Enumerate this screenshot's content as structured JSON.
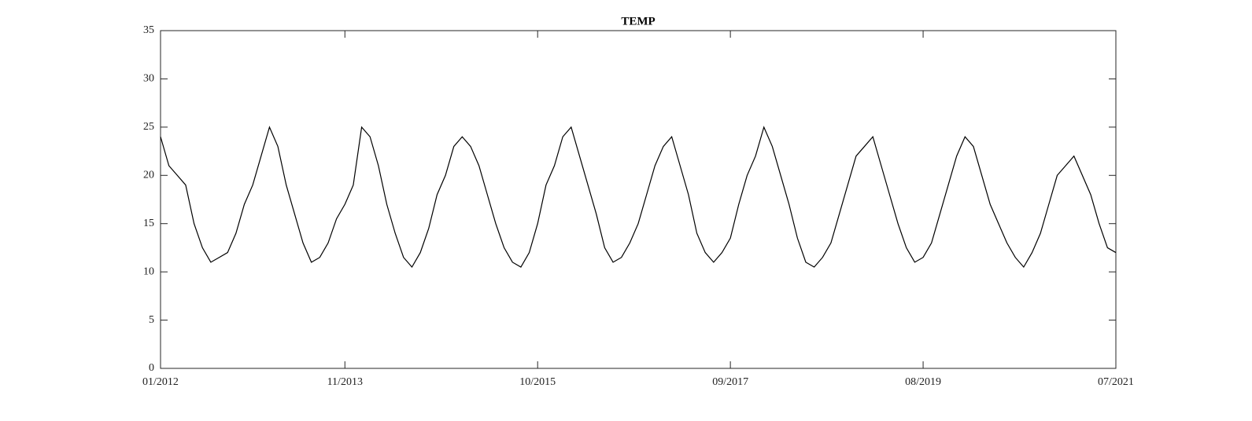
{
  "chart_data": {
    "type": "line",
    "title": "TEMP",
    "x": [
      "01/2012",
      "02/2012",
      "03/2012",
      "04/2012",
      "05/2012",
      "06/2012",
      "07/2012",
      "08/2012",
      "09/2012",
      "10/2012",
      "11/2012",
      "12/2012",
      "01/2013",
      "02/2013",
      "03/2013",
      "04/2013",
      "05/2013",
      "06/2013",
      "07/2013",
      "08/2013",
      "09/2013",
      "10/2013",
      "11/2013",
      "12/2013",
      "01/2014",
      "02/2014",
      "03/2014",
      "04/2014",
      "05/2014",
      "06/2014",
      "07/2014",
      "08/2014",
      "09/2014",
      "10/2014",
      "11/2014",
      "12/2014",
      "01/2015",
      "02/2015",
      "03/2015",
      "04/2015",
      "05/2015",
      "06/2015",
      "07/2015",
      "08/2015",
      "09/2015",
      "10/2015",
      "11/2015",
      "12/2015",
      "01/2016",
      "02/2016",
      "03/2016",
      "04/2016",
      "05/2016",
      "06/2016",
      "07/2016",
      "08/2016",
      "09/2016",
      "10/2016",
      "11/2016",
      "12/2016",
      "01/2017",
      "02/2017",
      "03/2017",
      "04/2017",
      "05/2017",
      "06/2017",
      "07/2017",
      "08/2017",
      "09/2017",
      "10/2017",
      "11/2017",
      "12/2017",
      "01/2018",
      "02/2018",
      "03/2018",
      "04/2018",
      "05/2018",
      "06/2018",
      "07/2018",
      "08/2018",
      "09/2018",
      "10/2018",
      "11/2018",
      "12/2018",
      "01/2019",
      "02/2019",
      "03/2019",
      "04/2019",
      "05/2019",
      "06/2019",
      "07/2019",
      "08/2019",
      "09/2019",
      "10/2019",
      "11/2019",
      "12/2019",
      "01/2020",
      "02/2020",
      "03/2020",
      "04/2020",
      "05/2020",
      "06/2020",
      "07/2020",
      "08/2020",
      "09/2020",
      "10/2020",
      "11/2020",
      "12/2020",
      "01/2021",
      "02/2021",
      "03/2021",
      "04/2021",
      "05/2021",
      "06/2021",
      "07/2021"
    ],
    "values": [
      24,
      21,
      20,
      19,
      15,
      12.5,
      11,
      11.5,
      12,
      14,
      17,
      19,
      22,
      25,
      23,
      19,
      16,
      13,
      11,
      11.5,
      13,
      15.5,
      17,
      19,
      25,
      24,
      21,
      17,
      14,
      11.5,
      10.5,
      12,
      14.5,
      18,
      20,
      23,
      24,
      23,
      21,
      18,
      15,
      12.5,
      11,
      10.5,
      12,
      15,
      19,
      21,
      24,
      25,
      22,
      19,
      16,
      12.5,
      11,
      11.5,
      13,
      15,
      18,
      21,
      23,
      24,
      21,
      18,
      14,
      12,
      11,
      12,
      13.5,
      17,
      20,
      22,
      25,
      23,
      20,
      17,
      13.5,
      11,
      10.5,
      11.5,
      13,
      16,
      19,
      22,
      23,
      24,
      21,
      18,
      15,
      12.5,
      11,
      11.5,
      13,
      16,
      19,
      22,
      24,
      23,
      20,
      17,
      15,
      13,
      11.5,
      10.5,
      12,
      14,
      17,
      20,
      21,
      22,
      20,
      18,
      15,
      12.5,
      12
    ],
    "color": "#000000",
    "xlim": [
      "01/2012",
      "07/2021"
    ],
    "xticks": [
      "01/2012",
      "11/2013",
      "10/2015",
      "09/2017",
      "08/2019",
      "07/2021"
    ],
    "ylim": [
      0,
      35
    ],
    "yticks": [
      0,
      5,
      10,
      15,
      20,
      25,
      30,
      35
    ],
    "grid": false
  }
}
